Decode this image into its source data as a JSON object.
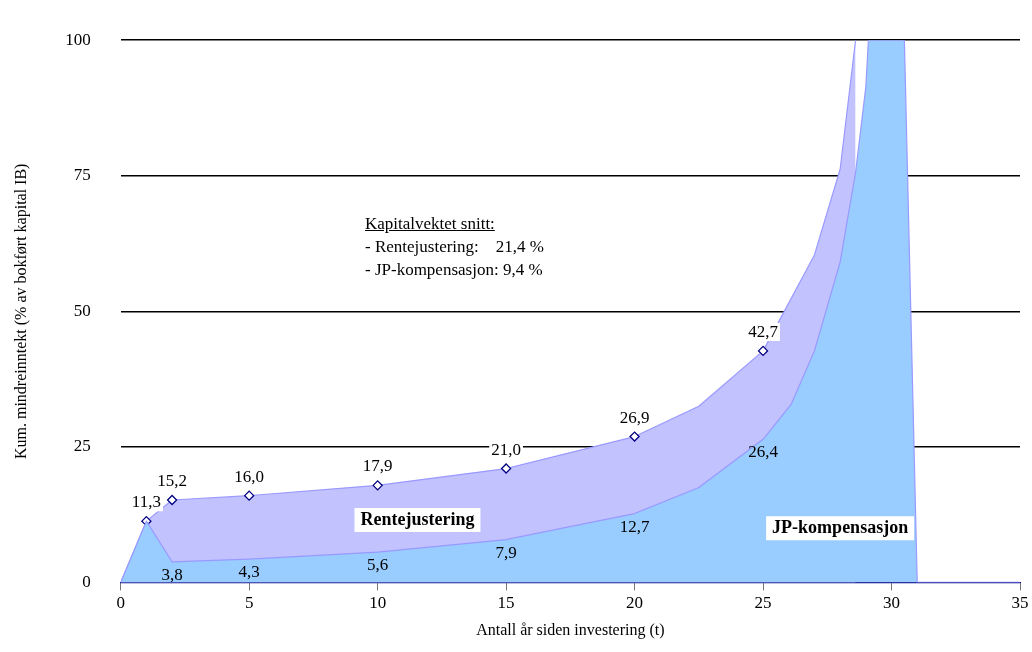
{
  "chart_data": {
    "type": "area",
    "xlabel": "Antall år siden investering (t)",
    "ylabel": "Kum. mindreinntekt (% av bokført kapital IB)",
    "xlim": [
      0,
      35
    ],
    "xticks": [
      0,
      5,
      10,
      15,
      20,
      25,
      30,
      35
    ],
    "ylim": [
      0,
      100
    ],
    "yticks": [
      0,
      25,
      50,
      75,
      100
    ],
    "grid": "y",
    "annotations": [
      "Kapitalvektet snitt:",
      "- Rentejustering:    21,4 %",
      "- JP-kompensasjon: 9,4 %"
    ],
    "series": [
      {
        "name": "Rentejustering",
        "color": "#c2c2ff",
        "marker": "diamond",
        "x": [
          0,
          1,
          2,
          5,
          10,
          15,
          20,
          22.5,
          25,
          27,
          28,
          28.6
        ],
        "values": [
          0,
          11.3,
          15.2,
          16.0,
          17.9,
          21.0,
          26.9,
          32.5,
          42.7,
          60.4,
          76.2,
          100
        ],
        "value_labels": [
          null,
          "11,3",
          "15,2",
          "16,0",
          "17,9",
          "21,0",
          "26,9",
          null,
          "42,7",
          null,
          null,
          null
        ]
      },
      {
        "name": "JP-kompensasjon",
        "color": "#99ccff",
        "marker": "none",
        "x": [
          0,
          1,
          2,
          5,
          10,
          15,
          20,
          22.5,
          25,
          26.1,
          27,
          28,
          28.6,
          29,
          29.1,
          30.5,
          31,
          35
        ],
        "values": [
          0,
          11.3,
          3.8,
          4.3,
          5.6,
          7.9,
          12.7,
          17.5,
          26.4,
          32.9,
          42.7,
          59.1,
          75.6,
          91.4,
          100,
          100,
          0,
          0
        ],
        "value_labels": [
          null,
          null,
          "3,8",
          "4,3",
          "5,6",
          "7,9",
          "12,7",
          null,
          "26,4",
          null,
          null,
          null,
          null,
          null,
          null,
          null,
          null,
          null
        ]
      }
    ]
  }
}
